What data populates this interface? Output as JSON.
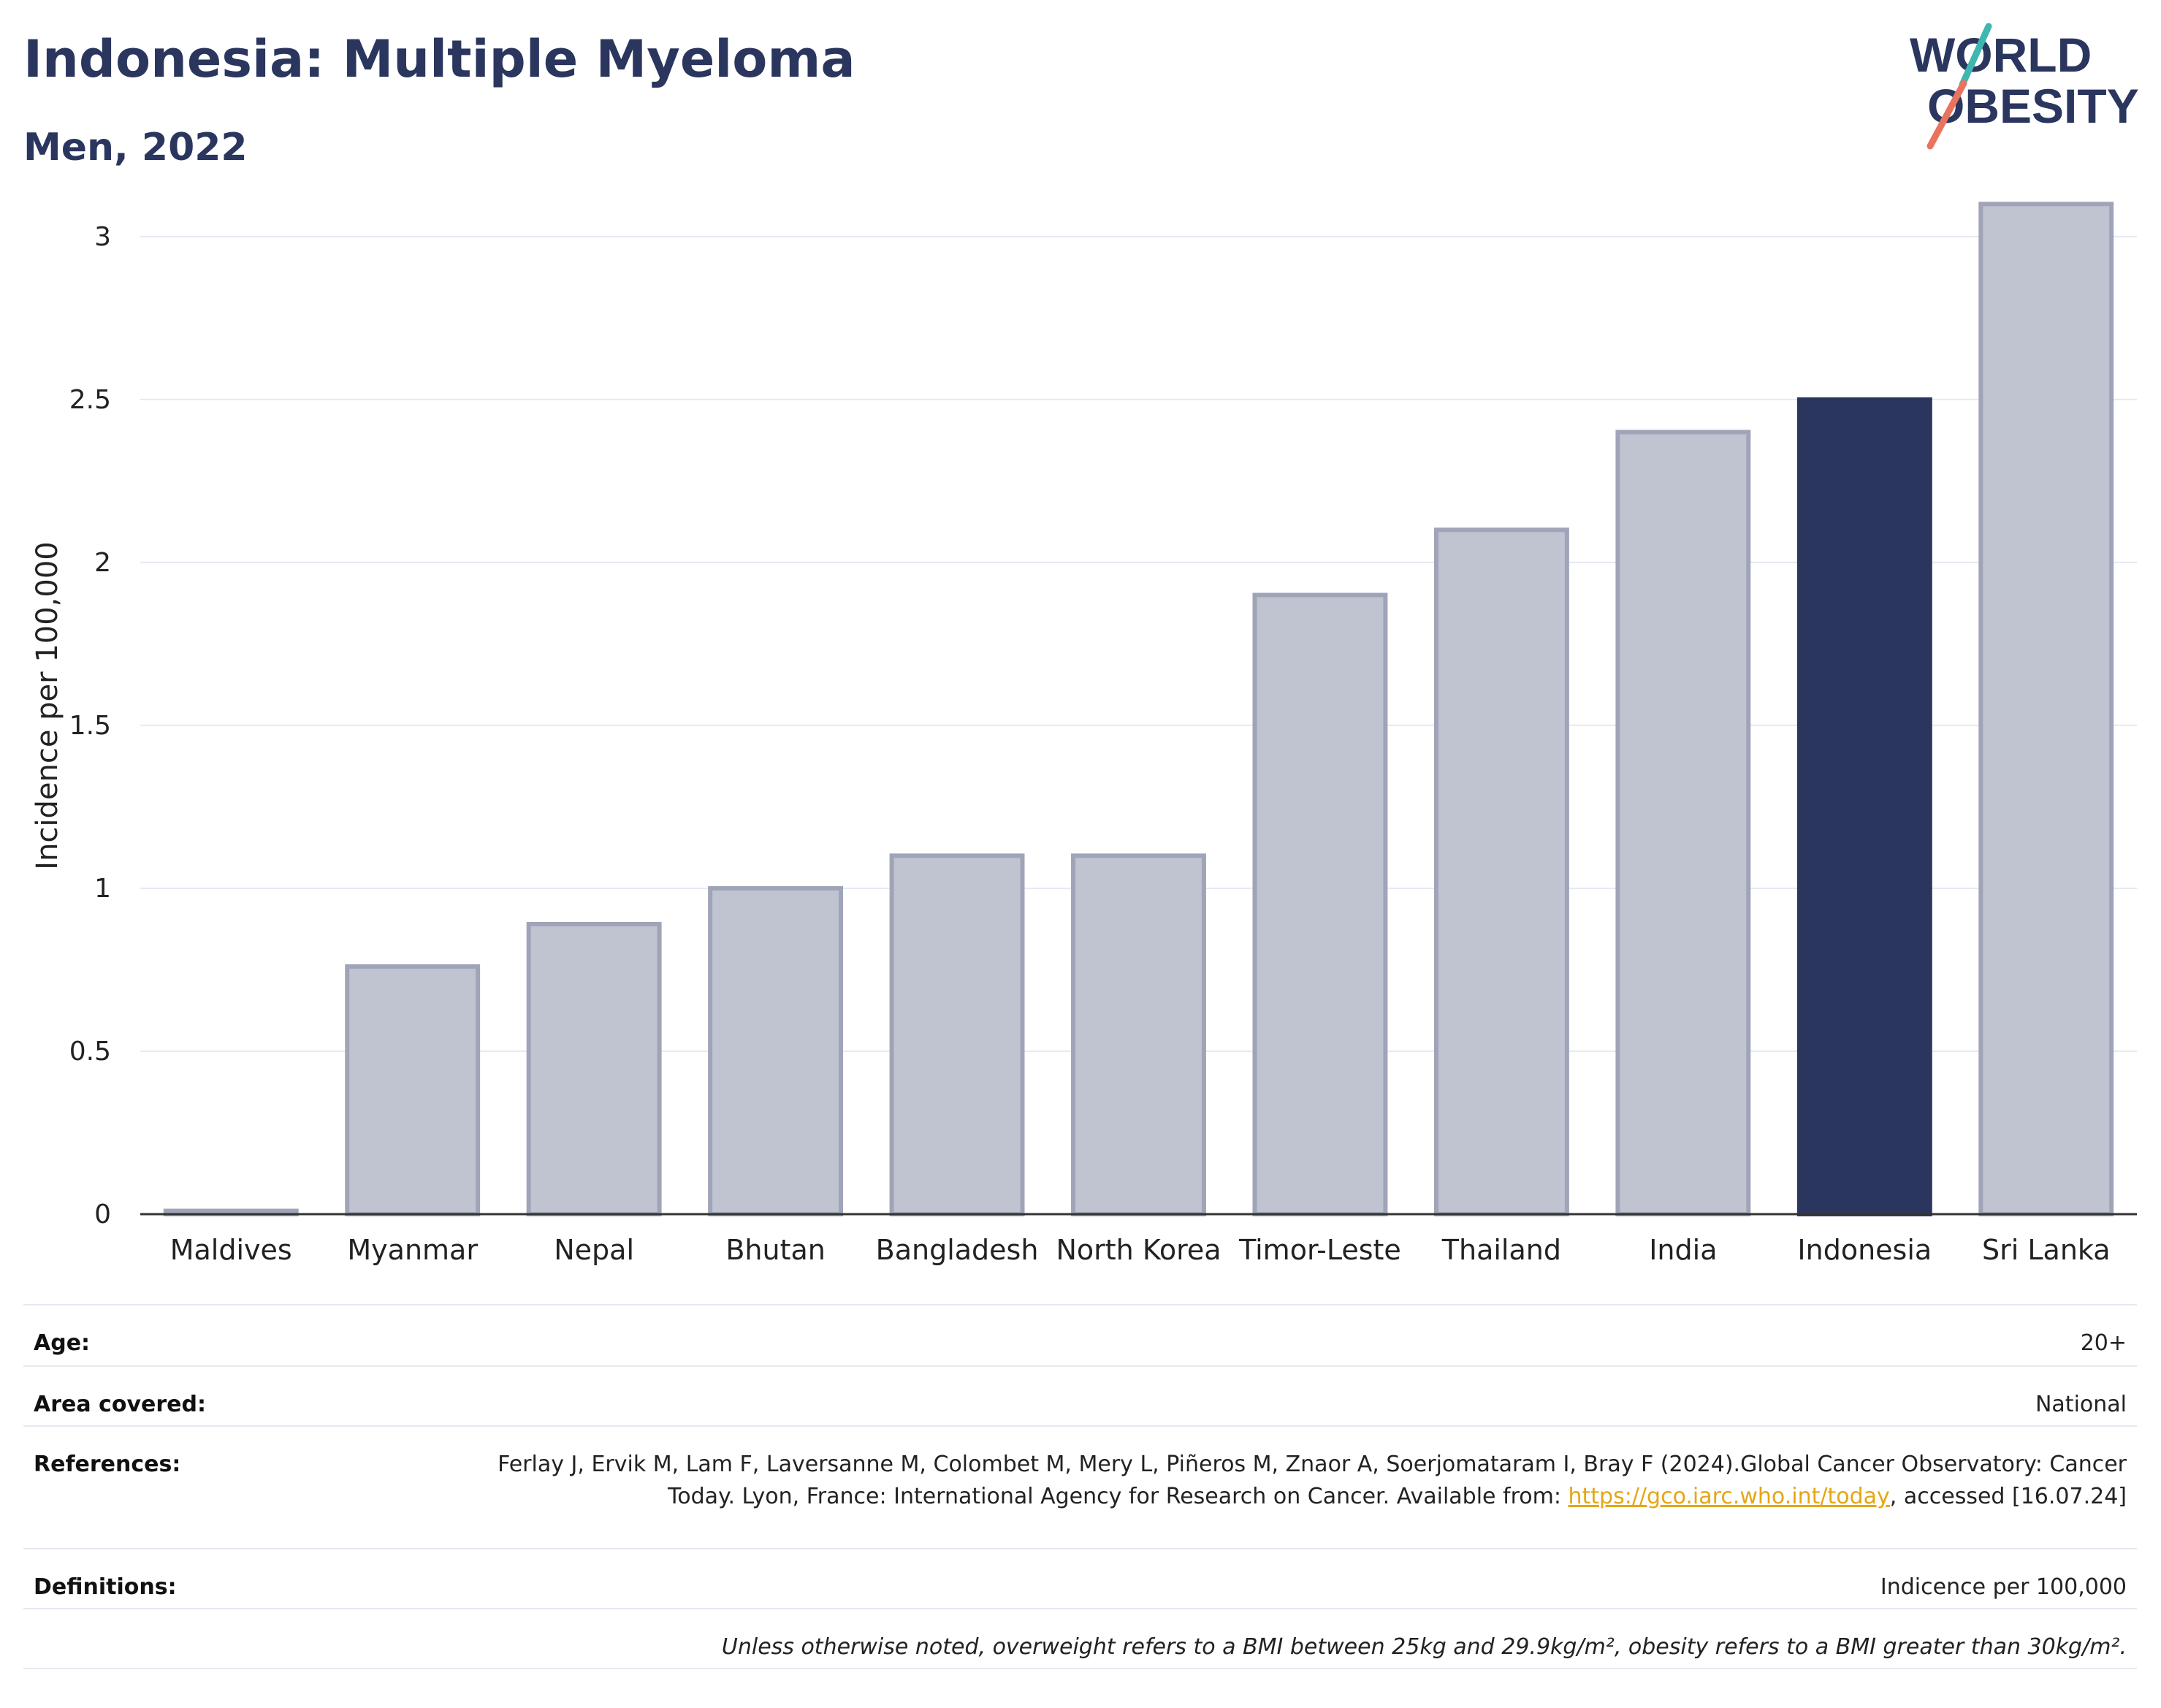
{
  "header": {
    "title": "Indonesia: Multiple Myeloma",
    "subtitle": "Men, 2022"
  },
  "logo": {
    "line1": "WORLD",
    "line2": "OBESITY",
    "slash_colors": [
      "#3fb6b0",
      "#e8735f"
    ],
    "text_color": "#2b365f"
  },
  "chart_data": {
    "type": "bar",
    "categories": [
      "Maldives",
      "Myanmar",
      "Nepal",
      "Bhutan",
      "Bangladesh",
      "North Korea",
      "Timor-Leste",
      "Thailand",
      "India",
      "Indonesia",
      "Sri Lanka"
    ],
    "values": [
      0.01,
      0.76,
      0.89,
      1.0,
      1.1,
      1.1,
      1.9,
      2.1,
      2.4,
      2.5,
      3.1
    ],
    "highlight": "Indonesia",
    "ylabel": "Incidence per 100,000",
    "xlabel": "",
    "ylim": [
      0,
      3.3
    ],
    "yticks": [
      0,
      0.5,
      1,
      1.5,
      2,
      2.5,
      3
    ],
    "ytick_labels": [
      "0",
      "0.5",
      "1",
      "1.5",
      "2",
      "2.5",
      "3"
    ],
    "grid": true,
    "colors": {
      "bar_fill": "#c0c3d0",
      "bar_stroke": "#9fa4b8",
      "highlight_fill": "#2b365f",
      "grid": "#e6e9f1",
      "axis": "#333333"
    }
  },
  "meta": {
    "age": {
      "label": "Age:",
      "value": "20+"
    },
    "area": {
      "label": "Area covered:",
      "value": "National"
    },
    "references": {
      "label": "References:",
      "text_before": "Ferlay J, Ervik M, Lam F, Laversanne M, Colombet M, Mery L, Piñeros M, Znaor A, Soerjomataram I, Bray F (2024).Global Cancer Observatory: Cancer Today. Lyon, France: International Agency for Research on Cancer. Available from: ",
      "link": "https://gco.iarc.who.int/today",
      "text_after": ", accessed [16.07.24]"
    },
    "definitions": {
      "label": "Definitions:",
      "value": "Indicence per 100,000"
    },
    "note": "Unless otherwise noted, overweight refers to a BMI between 25kg and 29.9kg/m², obesity refers to a BMI greater than 30kg/m²."
  }
}
